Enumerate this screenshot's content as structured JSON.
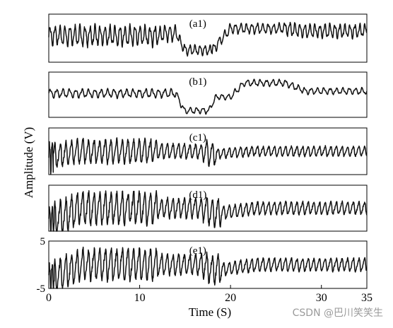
{
  "chart_data": {
    "type": "line",
    "xlabel": "Time (S)",
    "ylabel": "Amplitude (V)",
    "xlim": [
      0,
      35
    ],
    "x_ticks": [
      "0",
      "10",
      "20",
      "30",
      "35"
    ],
    "grid": false,
    "panels": [
      {
        "label": "(a1)",
        "ylim": [
          -5,
          5
        ],
        "y_ticks": [],
        "segments": [
          {
            "t_end": 12,
            "offset": 0.5,
            "amp": 1.8,
            "period": 0.55,
            "shape": "wave"
          },
          {
            "t_end": 14,
            "offset": 1.0,
            "amp": 1.4,
            "period": 0.55,
            "shape": "wave"
          },
          {
            "t_end": 18,
            "offset": -2.5,
            "amp": 0.9,
            "period": 0.55,
            "shape": "wave"
          },
          {
            "t_end": 26,
            "offset": 2.0,
            "amp": 0.9,
            "period": 0.6,
            "shape": "wave"
          },
          {
            "t_end": 35,
            "offset": 1.5,
            "amp": 1.2,
            "period": 0.55,
            "shape": "wave"
          }
        ]
      },
      {
        "label": "(b1)",
        "ylim": [
          -5,
          5
        ],
        "y_ticks": [],
        "segments": [
          {
            "t_end": 14,
            "offset": 0.3,
            "amp": 0.8,
            "period": 0.7,
            "shape": "wave"
          },
          {
            "t_end": 17.6,
            "offset": -3.5,
            "amp": 0.6,
            "period": 0.7,
            "shape": "wave"
          },
          {
            "t_end": 20,
            "offset": -0.5,
            "amp": 0.5,
            "period": 0.7,
            "shape": "wave"
          },
          {
            "t_end": 26,
            "offset": 2.6,
            "amp": 0.6,
            "period": 0.7,
            "shape": "wave"
          },
          {
            "t_end": 35,
            "offset": 0.8,
            "amp": 0.6,
            "period": 0.7,
            "shape": "wave"
          }
        ]
      },
      {
        "label": "(c1)",
        "ylim": [
          -5,
          5
        ],
        "y_ticks": [],
        "segments": [
          {
            "t_end": 0.5,
            "offset": -1.0,
            "amp": 3.0,
            "period": 0.3,
            "shape": "wave"
          },
          {
            "t_end": 12,
            "offset": 0.0,
            "amp": 2.6,
            "period": 0.62,
            "shape": "spike"
          },
          {
            "t_end": 17,
            "offset": 0.0,
            "amp": 1.6,
            "period": 0.62,
            "shape": "spike"
          },
          {
            "t_end": 18.5,
            "offset": -0.5,
            "amp": 2.6,
            "period": 0.62,
            "shape": "spike"
          },
          {
            "t_end": 35,
            "offset": 0.0,
            "amp": 1.1,
            "period": 0.62,
            "shape": "spike"
          }
        ]
      },
      {
        "label": "(d1)",
        "ylim": [
          -5,
          5
        ],
        "y_ticks": [],
        "segments": [
          {
            "t_end": 0.6,
            "offset": -2.5,
            "amp": 3.0,
            "period": 0.3,
            "shape": "wave"
          },
          {
            "t_end": 12,
            "offset": 0.0,
            "amp": 3.6,
            "period": 0.62,
            "shape": "spike"
          },
          {
            "t_end": 17,
            "offset": 0.0,
            "amp": 2.2,
            "period": 0.62,
            "shape": "spike"
          },
          {
            "t_end": 19,
            "offset": -1.0,
            "amp": 3.0,
            "period": 0.62,
            "shape": "spike"
          },
          {
            "t_end": 35,
            "offset": 0.0,
            "amp": 1.4,
            "period": 0.62,
            "shape": "spike"
          }
        ]
      },
      {
        "label": "(e1)",
        "ylim": [
          -5,
          5
        ],
        "y_ticks": [
          "5",
          "-5"
        ],
        "segments": [
          {
            "t_end": 0.6,
            "offset": -2.5,
            "amp": 3.0,
            "period": 0.3,
            "shape": "wave"
          },
          {
            "t_end": 12,
            "offset": 0.0,
            "amp": 3.4,
            "period": 0.62,
            "shape": "spike"
          },
          {
            "t_end": 17,
            "offset": 0.0,
            "amp": 2.2,
            "period": 0.62,
            "shape": "spike"
          },
          {
            "t_end": 19,
            "offset": -1.0,
            "amp": 3.0,
            "period": 0.62,
            "shape": "spike"
          },
          {
            "t_end": 35,
            "offset": 0.0,
            "amp": 1.4,
            "period": 0.62,
            "shape": "spike"
          }
        ]
      }
    ]
  },
  "watermark": "CSDN @巴川笑笑生"
}
